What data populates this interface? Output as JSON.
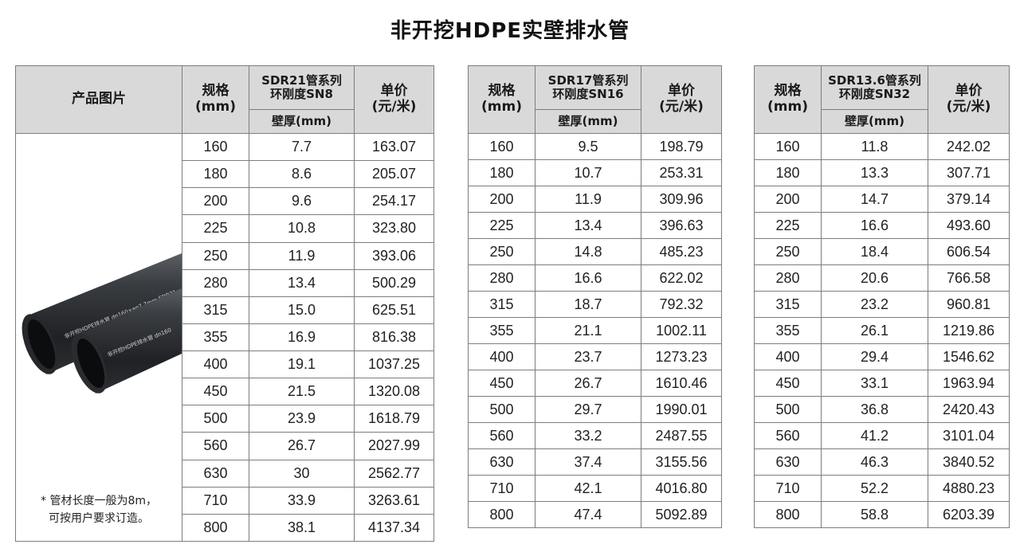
{
  "title": "非开挖HDPE实壁排水管",
  "labels": {
    "product_image": "产品图片",
    "spec_line1": "规格",
    "spec_line2": "(mm)",
    "price_line1": "单价",
    "price_line2": "(元/米)",
    "wall": "壁厚(mm)",
    "note_line1": "* 管材长度一般为8m，",
    "note_line2": "可按用户要求订造。"
  },
  "pipe_print_text": {
    "pipe_a": "非开挖HDPE排水管  dn160×en7.7mm  SDR21",
    "pipe_b": "非开挖HDPE排水管  dn160"
  },
  "sections": [
    {
      "series_line1": "SDR21管系列",
      "series_line2": "环刚度SN8",
      "rows": [
        [
          "160",
          "7.7",
          "163.07"
        ],
        [
          "180",
          "8.6",
          "205.07"
        ],
        [
          "200",
          "9.6",
          "254.17"
        ],
        [
          "225",
          "10.8",
          "323.80"
        ],
        [
          "250",
          "11.9",
          "393.06"
        ],
        [
          "280",
          "13.4",
          "500.29"
        ],
        [
          "315",
          "15.0",
          "625.51"
        ],
        [
          "355",
          "16.9",
          "816.38"
        ],
        [
          "400",
          "19.1",
          "1037.25"
        ],
        [
          "450",
          "21.5",
          "1320.08"
        ],
        [
          "500",
          "23.9",
          "1618.79"
        ],
        [
          "560",
          "26.7",
          "2027.99"
        ],
        [
          "630",
          "30",
          "2562.77"
        ],
        [
          "710",
          "33.9",
          "3263.61"
        ],
        [
          "800",
          "38.1",
          "4137.34"
        ]
      ]
    },
    {
      "series_line1": "SDR17管系列",
      "series_line2": "环刚度SN16",
      "rows": [
        [
          "160",
          "9.5",
          "198.79"
        ],
        [
          "180",
          "10.7",
          "253.31"
        ],
        [
          "200",
          "11.9",
          "309.96"
        ],
        [
          "225",
          "13.4",
          "396.63"
        ],
        [
          "250",
          "14.8",
          "485.23"
        ],
        [
          "280",
          "16.6",
          "622.02"
        ],
        [
          "315",
          "18.7",
          "792.32"
        ],
        [
          "355",
          "21.1",
          "1002.11"
        ],
        [
          "400",
          "23.7",
          "1273.23"
        ],
        [
          "450",
          "26.7",
          "1610.46"
        ],
        [
          "500",
          "29.7",
          "1990.01"
        ],
        [
          "560",
          "33.2",
          "2487.55"
        ],
        [
          "630",
          "37.4",
          "3155.56"
        ],
        [
          "710",
          "42.1",
          "4016.80"
        ],
        [
          "800",
          "47.4",
          "5092.89"
        ]
      ]
    },
    {
      "series_line1": "SDR13.6管系列",
      "series_line2": "环刚度SN32",
      "rows": [
        [
          "160",
          "11.8",
          "242.02"
        ],
        [
          "180",
          "13.3",
          "307.71"
        ],
        [
          "200",
          "14.7",
          "379.14"
        ],
        [
          "225",
          "16.6",
          "493.60"
        ],
        [
          "250",
          "18.4",
          "606.54"
        ],
        [
          "280",
          "20.6",
          "766.58"
        ],
        [
          "315",
          "23.2",
          "960.81"
        ],
        [
          "355",
          "26.1",
          "1219.86"
        ],
        [
          "400",
          "29.4",
          "1546.62"
        ],
        [
          "450",
          "33.1",
          "1963.94"
        ],
        [
          "500",
          "36.8",
          "2420.43"
        ],
        [
          "560",
          "41.2",
          "3101.04"
        ],
        [
          "630",
          "46.3",
          "3840.52"
        ],
        [
          "710",
          "52.2",
          "4880.23"
        ],
        [
          "800",
          "58.8",
          "6203.39"
        ]
      ]
    }
  ],
  "colors": {
    "header_bg": "#d9d9d9",
    "border": "#7d7d7d",
    "pipe": "#2f3236"
  }
}
